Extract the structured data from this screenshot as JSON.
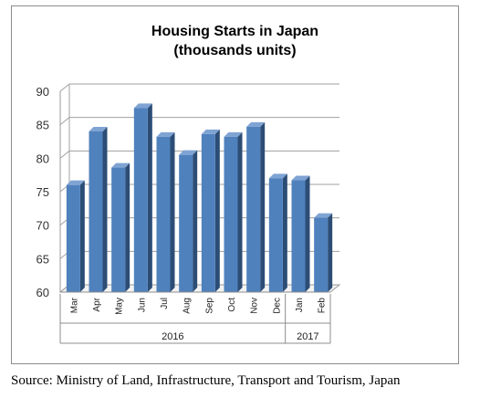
{
  "title_line1": "Housing Starts in Japan",
  "title_line2": "(thousands units)",
  "source": "Source: Ministry of Land, Infrastructure, Transport and Tourism, Japan",
  "chart_data": {
    "type": "bar",
    "title": "Housing Starts in Japan (thousands units)",
    "xlabel": "",
    "ylabel": "",
    "categories": [
      "Mar",
      "Apr",
      "May",
      "Jun",
      "Jul",
      "Aug",
      "Sep",
      "Oct",
      "Nov",
      "Dec",
      "Jan",
      "Feb"
    ],
    "groups": [
      {
        "label": "2016",
        "from": 0,
        "to": 9
      },
      {
        "label": "2017",
        "from": 10,
        "to": 11
      }
    ],
    "values": [
      76.0,
      84.0,
      78.6,
      87.5,
      83.2,
      80.5,
      83.6,
      83.2,
      84.7,
      77.0,
      76.7,
      71.1
    ],
    "ylim": [
      60,
      90
    ],
    "yticks": [
      60,
      65,
      70,
      75,
      80,
      85,
      90
    ],
    "grid": true,
    "style": "3d",
    "colors": {
      "bar_front": "#4f81bd",
      "bar_side": "#2c4d75",
      "bar_top": "#7fa3d3"
    }
  }
}
